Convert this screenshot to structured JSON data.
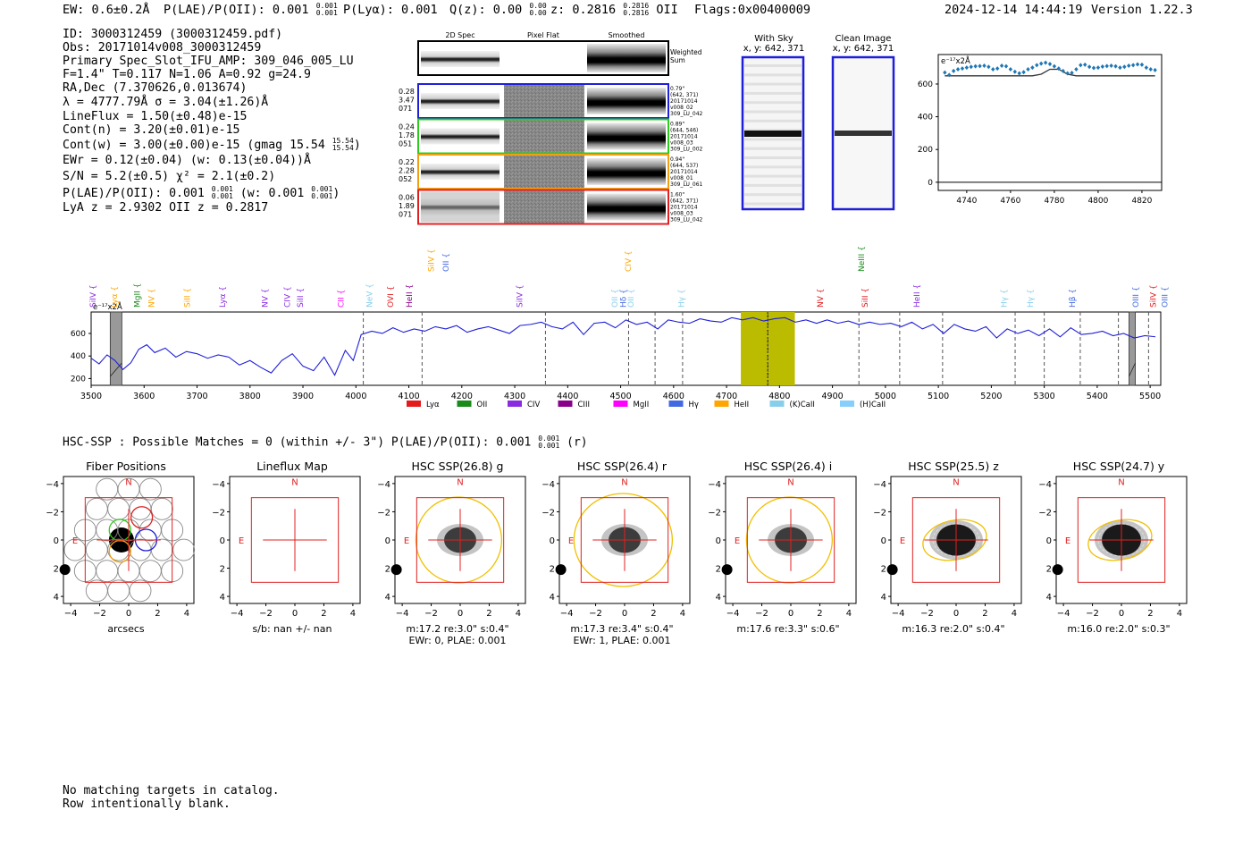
{
  "header": {
    "ew": "EW: 0.6±0.2Å",
    "plae": "P(LAE)/P(OII): 0.001",
    "plae_hi": "0.001",
    "plae_lo": "0.001",
    "plya": "P(Lyα): 0.001",
    "qz": "Q(z): 0.00",
    "qz_hi": "0.00",
    "qz_lo": "0.00",
    "z": "z: 0.2816",
    "z_hi": "0.2816",
    "z_lo": "0.2816",
    "z_tag": "OII",
    "flags": "Flags:0x00400009",
    "datetime": "2024-12-14 14:44:19",
    "version": "Version 1.22.3"
  },
  "info": {
    "id": "ID: 3000312459 (3000312459.pdf)",
    "obs": "Obs: 20171014v008_3000312459",
    "primary": "Primary Spec_Slot_IFU_AMP: 309_046_005_LU",
    "fparams": "F=1.4\"  T=0.117  N=1.06  A=0.92  g=24.9",
    "radec": "RA,Dec (7.370626,0.013674)",
    "lambda": "λ = 4777.79Å   σ = 3.04(±1.26)Å",
    "lineflux": "LineFlux = 1.50(±0.48)e-15",
    "contn": "Cont(n) = 3.20(±0.01)e-15",
    "contw": "Cont(w) = 3.00(±0.00)e-15 (gmag 15.54",
    "contw_hi": "15.54",
    "contw_lo": "15.54",
    "contw_close": ")",
    "ewr": "EWr = 0.12(±0.04) (w: 0.13(±0.04))Å",
    "sn": "S/N = 5.2(±0.5)  χ² = 2.1(±0.2)",
    "plae": "P(LAE)/P(OII): 0.001",
    "plae_hi": "0.001",
    "plae_lo": "0.001",
    "plae_w": "(w: 0.001",
    "plae_w_hi": "0.001",
    "plae_w_lo": "0.001",
    "plae_w_close": ")",
    "lyaz": "LyA z = 2.9302  OII z = 0.2817"
  },
  "spec2d": {
    "col_headers": [
      "2D Spec",
      "Pixel Flat",
      "Smoothed"
    ],
    "weighted_label": "Weighted\nSum",
    "rows": [
      {
        "left": [
          "0.28",
          "3.47",
          "071"
        ],
        "right": [
          "0.79\"",
          "(642, 371)",
          "20171014",
          "v008_02",
          "309_LU_042"
        ],
        "color": "#1f1fd8"
      },
      {
        "left": [
          "0.24",
          "1.78",
          "051"
        ],
        "right": [
          "0.89\"",
          "(644, 546)",
          "20171014",
          "v008_03",
          "309_LU_002"
        ],
        "color": "#2ecc1a"
      },
      {
        "left": [
          "0.22",
          "2.28",
          "052"
        ],
        "right": [
          "0.94\"",
          "(644, 537)",
          "20171014",
          "v008_01",
          "309_LU_061"
        ],
        "color": "#f0a010"
      },
      {
        "left": [
          "0.06",
          "1.89",
          "071"
        ],
        "right": [
          "1.60\"",
          "(642, 371)",
          "20171014",
          "v008_03",
          "309_LU_042"
        ],
        "color": "#e02020"
      }
    ]
  },
  "sky": {
    "with_sky_title": "With Sky",
    "with_sky_coords": "x, y: 642, 371",
    "clean_title": "Clean Image",
    "clean_coords": "x, y: 642, 371"
  },
  "zoom_chart": {
    "ylabel": "e⁻¹⁷x2Å",
    "yticks": [
      0,
      200,
      400,
      600
    ],
    "xticks": [
      4740,
      4760,
      4780,
      4800,
      4820
    ]
  },
  "full_spectrum": {
    "ylabel": "e⁻¹⁷x2Å",
    "xticks": [
      3500,
      3600,
      3700,
      3800,
      3900,
      4000,
      4100,
      4200,
      4300,
      4400,
      4500,
      4600,
      4700,
      4800,
      4900,
      5000,
      5100,
      5200,
      5300,
      5400,
      5500
    ],
    "yticks": [
      200,
      400,
      600
    ],
    "legend": [
      {
        "label": "Lyα",
        "color": "#e41a1c"
      },
      {
        "label": "OII",
        "color": "#1a8a1a"
      },
      {
        "label": "CIV",
        "color": "#8a2be2"
      },
      {
        "label": "CIII",
        "color": "#8b008b"
      },
      {
        "label": "MgII",
        "color": "#ff00ff"
      },
      {
        "label": "Hγ",
        "color": "#4169e1"
      },
      {
        "label": "HeII",
        "color": "#ffa500"
      },
      {
        "label": "(K)CaII",
        "color": "#87ceeb"
      },
      {
        "label": "(H)CaII",
        "color": "#87cefa"
      }
    ],
    "line_labels": [
      {
        "text": "SiIV",
        "wl": 3503,
        "color": "#8a2be2",
        "row": 1
      },
      {
        "text": "Lyα",
        "wl": 3544,
        "color": "#ffa500",
        "row": 1
      },
      {
        "text": "MgII",
        "wl": 3587,
        "color": "#1a8a1a",
        "row": 1
      },
      {
        "text": "NV",
        "wl": 3614,
        "color": "#ffa500",
        "row": 1
      },
      {
        "text": "SiII",
        "wl": 3681,
        "color": "#ffa500",
        "row": 1
      },
      {
        "text": "Lyα",
        "wl": 3748,
        "color": "#8a2be2",
        "row": 1
      },
      {
        "text": "NV",
        "wl": 3828,
        "color": "#8a2be2",
        "row": 1
      },
      {
        "text": "CIV",
        "wl": 3870,
        "color": "#8a2be2",
        "row": 1
      },
      {
        "text": "SiII",
        "wl": 3895,
        "color": "#8a2be2",
        "row": 1
      },
      {
        "text": "CII",
        "wl": 3972,
        "color": "#ff00ff",
        "row": 1
      },
      {
        "text": "NeV",
        "wl": 4026,
        "color": "#87ceeb",
        "row": 1
      },
      {
        "text": "OVI",
        "wl": 4065,
        "color": "#e41a1c",
        "row": 1
      },
      {
        "text": "HeII",
        "wl": 4101,
        "color": "#8b008b",
        "row": 1
      },
      {
        "text": "SiIV",
        "wl": 4142,
        "color": "#ffa500",
        "row": 0
      },
      {
        "text": "OII",
        "wl": 4170,
        "color": "#4169e1",
        "row": 0
      },
      {
        "text": "SiIV",
        "wl": 4309,
        "color": "#8a2be2",
        "row": 1
      },
      {
        "text": "OII",
        "wl": 4489,
        "color": "#87ceeb",
        "row": 1
      },
      {
        "text": "Hδ",
        "wl": 4505,
        "color": "#4169e1",
        "row": 1
      },
      {
        "text": "OII",
        "wl": 4519,
        "color": "#87ceeb",
        "row": 1
      },
      {
        "text": "CIV",
        "wl": 4514,
        "color": "#ffa500",
        "row": 0
      },
      {
        "text": "Hγ",
        "wl": 4615,
        "color": "#87ceeb",
        "row": 1
      },
      {
        "text": "NV",
        "wl": 4877,
        "color": "#e41a1c",
        "row": 1
      },
      {
        "text": "NeIII",
        "wl": 4955,
        "color": "#1a8a1a",
        "row": 0
      },
      {
        "text": "SiII",
        "wl": 4961,
        "color": "#e41a1c",
        "row": 1
      },
      {
        "text": "HeII",
        "wl": 5059,
        "color": "#8a2be2",
        "row": 1
      },
      {
        "text": "Hγ",
        "wl": 5224,
        "color": "#87ceeb",
        "row": 1
      },
      {
        "text": "Hγ",
        "wl": 5274,
        "color": "#87ceeb",
        "row": 1
      },
      {
        "text": "Hβ",
        "wl": 5353,
        "color": "#4169e1",
        "row": 1
      },
      {
        "text": "OIII",
        "wl": 5473,
        "color": "#4169e1",
        "row": 1
      },
      {
        "text": "SiIV",
        "wl": 5506,
        "color": "#e41a1c",
        "row": 1
      },
      {
        "text": "OIII",
        "wl": 5528,
        "color": "#4169e1",
        "row": 1
      }
    ]
  },
  "hsc_header": {
    "text": "HSC-SSP : Possible Matches = 0 (within +/- 3\")  P(LAE)/P(OII): 0.001",
    "hi": "0.001",
    "lo": "0.001",
    "tail": "(r)"
  },
  "cutouts": [
    {
      "title": "Fiber Positions",
      "caption1": "arcsecs",
      "caption2": "",
      "type": "fibers"
    },
    {
      "title": "Lineflux Map",
      "caption1": "s/b: nan +/- nan",
      "caption2": "",
      "type": "lineflux"
    },
    {
      "title": "HSC SSP(26.8) g",
      "caption1": "m:17.2  re:3.0\"  s:0.4\"",
      "caption2": "EWr: 0, PLAE: 0.001",
      "type": "hsc"
    },
    {
      "title": "HSC SSP(26.4) r",
      "caption1": "m:17.3  re:3.4\"  s:0.4\"",
      "caption2": "EWr: 1, PLAE: 0.001",
      "type": "hsc"
    },
    {
      "title": "HSC SSP(26.4) i",
      "caption1": "m:17.6  re:3.3\"  s:0.6\"",
      "caption2": "",
      "type": "hsc"
    },
    {
      "title": "HSC SSP(25.5) z",
      "caption1": "m:16.3  re:2.0\"  s:0.4\"",
      "caption2": "",
      "type": "hsc"
    },
    {
      "title": "HSC SSP(24.7) y",
      "caption1": "m:16.0  re:2.0\"  s:0.3\"",
      "caption2": "",
      "type": "hsc"
    }
  ],
  "cutout_axes": {
    "xticks": [
      "−4",
      "−2",
      "0",
      "2",
      "4"
    ],
    "yticks": [
      "4",
      "2",
      "0",
      "−2",
      "−4"
    ],
    "north": "N",
    "east": "E"
  },
  "footer": {
    "line1": "No matching targets in catalog.",
    "line2": "Row intentionally blank."
  },
  "chart_data": [
    {
      "type": "line",
      "title": "",
      "xlabel": "",
      "ylabel": "e⁻¹⁷x2Å",
      "xlim": [
        4727,
        4829
      ],
      "ylim": [
        -50,
        780
      ],
      "series": [
        {
          "name": "",
          "x": [
            4730,
            4732,
            4734,
            4736,
            4738,
            4740,
            4742,
            4744,
            4746,
            4748,
            4750,
            4752,
            4754,
            4756,
            4758,
            4760,
            4762,
            4764,
            4766,
            4768,
            4770,
            4772,
            4774,
            4776,
            4778,
            4780,
            4782,
            4784,
            4786,
            4788,
            4790,
            4792,
            4794,
            4796,
            4798,
            4800,
            4802,
            4804,
            4806,
            4808,
            4810,
            4812,
            4814,
            4816,
            4818,
            4820,
            4822,
            4824,
            4826
          ],
          "values": [
            670,
            655,
            680,
            690,
            695,
            700,
            705,
            708,
            710,
            712,
            705,
            690,
            695,
            712,
            708,
            690,
            675,
            665,
            672,
            690,
            700,
            715,
            725,
            730,
            722,
            708,
            695,
            680,
            665,
            668,
            690,
            715,
            718,
            705,
            698,
            700,
            706,
            710,
            712,
            708,
            700,
            705,
            712,
            715,
            720,
            718,
            700,
            690,
            685
          ]
        },
        {
          "name": "",
          "x": [
            4730,
            4770,
            4774,
            4778,
            4782,
            4786,
            4790,
            4826
          ],
          "values": [
            650,
            650,
            660,
            690,
            690,
            660,
            650,
            650
          ]
        }
      ],
      "xticks": [
        4740,
        4760,
        4780,
        4800,
        4820
      ],
      "yticks": [
        0,
        200,
        400,
        600
      ]
    },
    {
      "type": "line",
      "title": "",
      "xlabel": "",
      "ylabel": "e⁻¹⁷x2Å",
      "xlim": [
        3500,
        5520
      ],
      "ylim": [
        140,
        790
      ],
      "series": [
        {
          "name": "",
          "x": [
            3500,
            3515,
            3530,
            3545,
            3560,
            3575,
            3590,
            3605,
            3620,
            3640,
            3660,
            3680,
            3700,
            3720,
            3740,
            3760,
            3780,
            3800,
            3820,
            3840,
            3860,
            3880,
            3900,
            3920,
            3940,
            3960,
            3980,
            3995,
            4010,
            4030,
            4050,
            4070,
            4090,
            4110,
            4130,
            4150,
            4170,
            4190,
            4210,
            4230,
            4250,
            4270,
            4290,
            4310,
            4330,
            4350,
            4370,
            4390,
            4410,
            4430,
            4450,
            4470,
            4490,
            4510,
            4530,
            4550,
            4570,
            4590,
            4610,
            4630,
            4650,
            4670,
            4690,
            4710,
            4730,
            4750,
            4770,
            4790,
            4810,
            4830,
            4850,
            4870,
            4890,
            4910,
            4930,
            4950,
            4970,
            4990,
            5010,
            5030,
            5050,
            5070,
            5090,
            5110,
            5130,
            5150,
            5170,
            5190,
            5210,
            5230,
            5250,
            5270,
            5290,
            5310,
            5330,
            5350,
            5370,
            5390,
            5410,
            5430,
            5450,
            5470,
            5490,
            5510
          ],
          "values": [
            380,
            330,
            410,
            360,
            280,
            340,
            460,
            500,
            430,
            470,
            390,
            440,
            420,
            380,
            410,
            390,
            320,
            360,
            300,
            250,
            360,
            420,
            310,
            270,
            390,
            230,
            450,
            360,
            590,
            620,
            600,
            650,
            610,
            640,
            620,
            660,
            640,
            670,
            610,
            640,
            660,
            630,
            600,
            670,
            680,
            700,
            660,
            640,
            700,
            590,
            690,
            700,
            650,
            720,
            680,
            700,
            640,
            720,
            700,
            690,
            730,
            710,
            700,
            740,
            720,
            740,
            710,
            730,
            740,
            700,
            720,
            690,
            720,
            690,
            710,
            680,
            700,
            680,
            690,
            660,
            700,
            640,
            680,
            600,
            680,
            640,
            620,
            660,
            560,
            640,
            600,
            630,
            580,
            640,
            570,
            650,
            590,
            600,
            620,
            580,
            600,
            560,
            580,
            570
          ]
        }
      ],
      "xticks": [
        3500,
        3600,
        3700,
        3800,
        3900,
        4000,
        4100,
        4200,
        4300,
        4400,
        4500,
        4600,
        4700,
        4800,
        4900,
        5000,
        5100,
        5200,
        5300,
        5400,
        5500
      ],
      "yticks": [
        200,
        400,
        600
      ],
      "dashed_lines": [
        4014,
        4125,
        4358,
        4515,
        4565,
        4617,
        4778,
        4950,
        5027,
        5108,
        5245,
        5300,
        5368,
        5440,
        5497
      ],
      "highlight_band": [
        4727,
        4829
      ],
      "emission_line": 4777.79,
      "masked_regions": [
        [
          3536,
          3558
        ],
        [
          5460,
          5472
        ]
      ]
    }
  ]
}
